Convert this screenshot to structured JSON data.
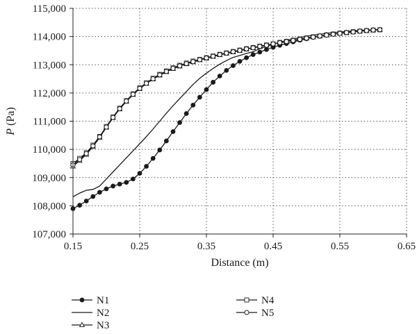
{
  "chart_data": {
    "type": "line",
    "title": "",
    "xlabel": "Distance (m)",
    "ylabel_italic": "P",
    "ylabel_unit": " (Pa)",
    "xlim": [
      0.15,
      0.65
    ],
    "ylim": [
      107000,
      115000
    ],
    "xticks": [
      0.15,
      0.25,
      0.35,
      0.45,
      0.55,
      0.65
    ],
    "xtick_labels": [
      "0.15",
      "0.25",
      "0.35",
      "0.45",
      "0.55",
      "0.65"
    ],
    "yticks": [
      107000,
      108000,
      109000,
      110000,
      111000,
      112000,
      113000,
      114000,
      115000
    ],
    "ytick_labels": [
      "107,000",
      "108,000",
      "109,000",
      "110,000",
      "111,000",
      "112,000",
      "113,000",
      "114,000",
      "115,000"
    ],
    "grid": true,
    "legend_placement": "bottom",
    "series": [
      {
        "name": "N1",
        "marker": "filled-circle",
        "x": [
          0.15,
          0.16,
          0.17,
          0.18,
          0.19,
          0.2,
          0.21,
          0.22,
          0.23,
          0.24,
          0.25,
          0.26,
          0.27,
          0.28,
          0.29,
          0.3,
          0.31,
          0.32,
          0.33,
          0.34,
          0.35,
          0.36,
          0.37,
          0.38,
          0.39,
          0.4,
          0.41,
          0.42,
          0.43,
          0.44,
          0.45,
          0.46,
          0.47,
          0.48,
          0.49,
          0.5,
          0.51,
          0.52,
          0.53,
          0.54,
          0.55,
          0.56,
          0.57,
          0.58,
          0.59,
          0.6,
          0.61
        ],
        "y": [
          107900,
          108020,
          108170,
          108330,
          108480,
          108600,
          108700,
          108770,
          108830,
          108950,
          109150,
          109400,
          109680,
          109980,
          110300,
          110630,
          110950,
          111270,
          111570,
          111850,
          112120,
          112380,
          112600,
          112800,
          112970,
          113120,
          113250,
          113360,
          113450,
          113540,
          113620,
          113690,
          113750,
          113810,
          113870,
          113920,
          113970,
          114010,
          114050,
          114080,
          114110,
          114140,
          114170,
          114190,
          114210,
          114230,
          114240
        ]
      },
      {
        "name": "N2",
        "marker": "none",
        "x": [
          0.15,
          0.16,
          0.17,
          0.18,
          0.19,
          0.2,
          0.21,
          0.22,
          0.23,
          0.24,
          0.25,
          0.26,
          0.27,
          0.28,
          0.29,
          0.3,
          0.31,
          0.32,
          0.33,
          0.34,
          0.35,
          0.36,
          0.37,
          0.38,
          0.39,
          0.4,
          0.41,
          0.42,
          0.43,
          0.44,
          0.45,
          0.46,
          0.47,
          0.48,
          0.49,
          0.5,
          0.51,
          0.52,
          0.53,
          0.54,
          0.55,
          0.56,
          0.57,
          0.58,
          0.59,
          0.6,
          0.61
        ],
        "y": [
          108320,
          108450,
          108550,
          108580,
          108700,
          108950,
          109200,
          109450,
          109700,
          109950,
          110200,
          110450,
          110720,
          111000,
          111280,
          111550,
          111800,
          112050,
          112300,
          112520,
          112700,
          112870,
          113020,
          113150,
          113260,
          113330,
          113400,
          113460,
          113570,
          113650,
          113730,
          113800,
          113860,
          113910,
          113960,
          114010,
          114050,
          114080,
          114110,
          114140,
          114160,
          114180,
          114200,
          114220,
          114230,
          114240,
          114250
        ]
      },
      {
        "name": "N3",
        "marker": "open-triangle",
        "x": [
          0.15,
          0.16,
          0.17,
          0.18,
          0.19,
          0.2,
          0.21,
          0.22,
          0.23,
          0.24,
          0.25,
          0.26,
          0.27,
          0.28,
          0.29,
          0.3,
          0.31,
          0.32,
          0.33,
          0.34,
          0.35,
          0.36,
          0.37,
          0.38,
          0.39,
          0.4,
          0.41,
          0.42,
          0.43,
          0.44,
          0.45,
          0.46,
          0.47,
          0.48,
          0.49,
          0.5,
          0.51,
          0.52,
          0.53,
          0.54,
          0.55,
          0.56,
          0.57,
          0.58,
          0.59,
          0.6,
          0.61
        ],
        "y": [
          109400,
          109600,
          109820,
          110100,
          110420,
          110780,
          111120,
          111430,
          111700,
          111940,
          112150,
          112330,
          112490,
          112630,
          112750,
          112860,
          112950,
          113030,
          113100,
          113170,
          113230,
          113290,
          113350,
          113400,
          113450,
          113500,
          113550,
          113600,
          113640,
          113690,
          113730,
          113780,
          113820,
          113860,
          113900,
          113940,
          113980,
          114020,
          114050,
          114080,
          114110,
          114140,
          114160,
          114190,
          114210,
          114230,
          114240
        ]
      },
      {
        "name": "N4",
        "marker": "open-square",
        "x": [
          0.15,
          0.16,
          0.17,
          0.18,
          0.19,
          0.2,
          0.21,
          0.22,
          0.23,
          0.24,
          0.25,
          0.26,
          0.27,
          0.28,
          0.29,
          0.3,
          0.31,
          0.32,
          0.33,
          0.34,
          0.35,
          0.36,
          0.37,
          0.38,
          0.39,
          0.4,
          0.41,
          0.42,
          0.43,
          0.44,
          0.45,
          0.46,
          0.47,
          0.48,
          0.49,
          0.5,
          0.51,
          0.52,
          0.53,
          0.54,
          0.55,
          0.56,
          0.57,
          0.58,
          0.59,
          0.6,
          0.61
        ],
        "y": [
          109500,
          109680,
          109880,
          110150,
          110460,
          110810,
          111150,
          111460,
          111730,
          111970,
          112180,
          112360,
          112520,
          112660,
          112780,
          112890,
          112980,
          113060,
          113130,
          113190,
          113250,
          113310,
          113370,
          113420,
          113470,
          113520,
          113570,
          113610,
          113660,
          113700,
          113740,
          113790,
          113830,
          113870,
          113910,
          113950,
          113990,
          114020,
          114060,
          114090,
          114120,
          114140,
          114170,
          114190,
          114210,
          114230,
          114240
        ]
      },
      {
        "name": "N5",
        "marker": "open-circle",
        "x": [
          0.15,
          0.16,
          0.17,
          0.18,
          0.19,
          0.2,
          0.21,
          0.22,
          0.23,
          0.24,
          0.25,
          0.26,
          0.27,
          0.28,
          0.29,
          0.3,
          0.31,
          0.32,
          0.33,
          0.34,
          0.35,
          0.36,
          0.37,
          0.38,
          0.39,
          0.4,
          0.41,
          0.42,
          0.43,
          0.44,
          0.45,
          0.46,
          0.47,
          0.48,
          0.49,
          0.5,
          0.51,
          0.52,
          0.53,
          0.54,
          0.55,
          0.56,
          0.57,
          0.58,
          0.59,
          0.6,
          0.61
        ],
        "y": [
          109450,
          109640,
          109850,
          110120,
          110440,
          110790,
          111130,
          111440,
          111710,
          111950,
          112160,
          112340,
          112500,
          112640,
          112760,
          112870,
          112960,
          113040,
          113110,
          113180,
          113240,
          113300,
          113360,
          113410,
          113460,
          113510,
          113560,
          113600,
          113650,
          113690,
          113740,
          113780,
          113820,
          113860,
          113900,
          113940,
          113980,
          114020,
          114050,
          114080,
          114110,
          114140,
          114160,
          114190,
          114210,
          114230,
          114240
        ]
      }
    ]
  }
}
